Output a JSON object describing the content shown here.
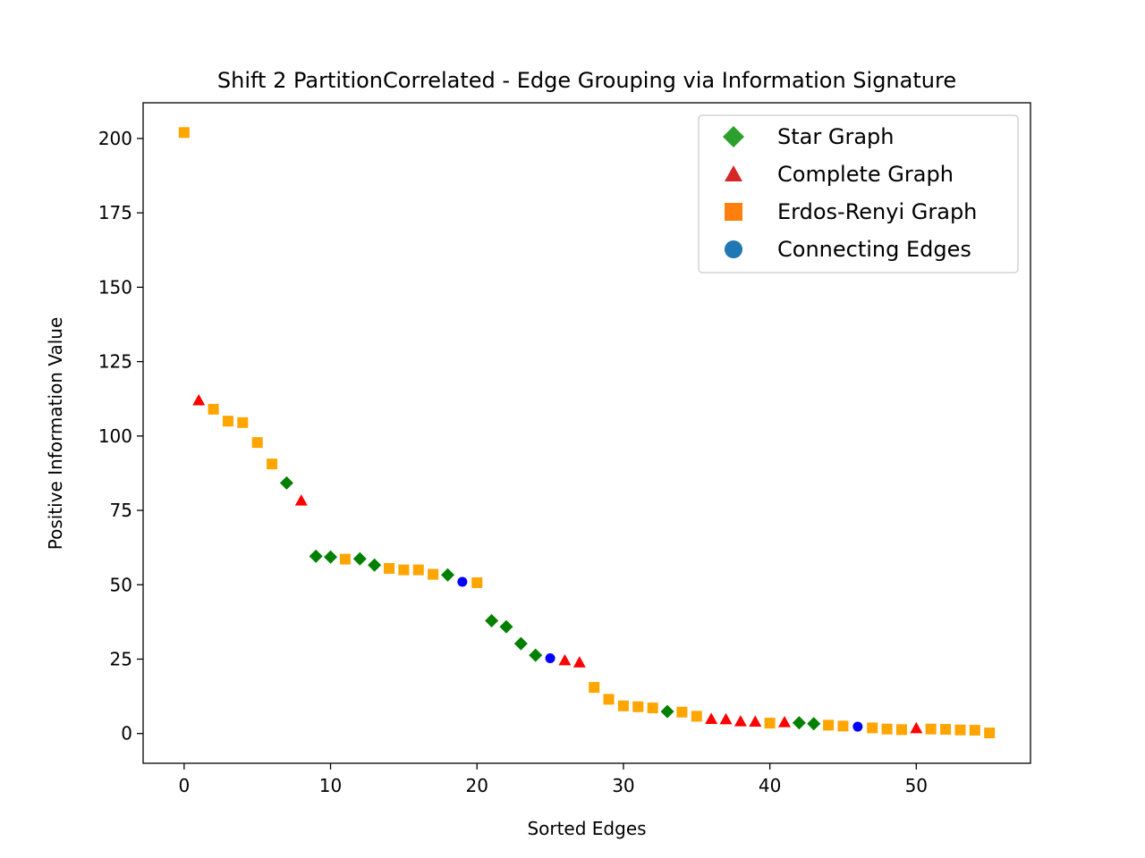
{
  "chart_data": {
    "type": "scatter",
    "title": "Shift 2 PartitionCorrelated - Edge Grouping via Information Signature",
    "xlabel": "Sorted Edges",
    "ylabel": "Positive Information Value",
    "xlim": [
      -2.8,
      57.8
    ],
    "ylim": [
      -10,
      212
    ],
    "xticks": [
      "0",
      "10",
      "20",
      "30",
      "40",
      "50"
    ],
    "yticks": [
      "0",
      "25",
      "50",
      "75",
      "100",
      "125",
      "150",
      "175",
      "200"
    ],
    "grid": false,
    "legend_position": "upper right",
    "legend": [
      {
        "label": "Star Graph",
        "marker": "diamond",
        "color": "#2ca02c"
      },
      {
        "label": "Complete Graph",
        "marker": "triangle",
        "color": "#d62728"
      },
      {
        "label": "Erdos-Renyi Graph",
        "marker": "square",
        "color": "#ff7f0e"
      },
      {
        "label": "Connecting Edges",
        "marker": "circle",
        "color": "#1f77b4"
      }
    ],
    "series": [
      {
        "group": "star",
        "marker": "diamond",
        "color": "#008000",
        "points": [
          [
            7,
            84.2
          ],
          [
            9,
            59.6
          ],
          [
            10,
            59.3
          ],
          [
            12,
            58.7
          ],
          [
            13,
            56.6
          ],
          [
            18,
            53.3
          ],
          [
            21,
            37.9
          ],
          [
            22,
            35.9
          ],
          [
            23,
            30.2
          ],
          [
            24,
            26.3
          ],
          [
            33,
            7.4
          ],
          [
            42,
            3.6
          ],
          [
            43,
            3.3
          ]
        ]
      },
      {
        "group": "complete",
        "marker": "triangle",
        "color": "#ff0000",
        "points": [
          [
            1,
            112.0
          ],
          [
            8,
            78.3
          ],
          [
            26,
            24.6
          ],
          [
            27,
            23.9
          ],
          [
            36,
            4.9
          ],
          [
            37,
            4.8
          ],
          [
            38,
            4.1
          ],
          [
            39,
            4.0
          ],
          [
            41,
            3.8
          ],
          [
            50,
            1.8
          ]
        ]
      },
      {
        "group": "erdos",
        "marker": "square",
        "color": "#ffa500",
        "points": [
          [
            0,
            202.0
          ],
          [
            2,
            109.0
          ],
          [
            3,
            105.0
          ],
          [
            4,
            104.5
          ],
          [
            5,
            97.8
          ],
          [
            6,
            90.6
          ],
          [
            11,
            58.6
          ],
          [
            14,
            55.5
          ],
          [
            15,
            55.0
          ],
          [
            16,
            55.0
          ],
          [
            17,
            53.5
          ],
          [
            20,
            50.7
          ],
          [
            28,
            15.5
          ],
          [
            29,
            11.5
          ],
          [
            30,
            9.3
          ],
          [
            31,
            9.0
          ],
          [
            32,
            8.6
          ],
          [
            34,
            7.2
          ],
          [
            35,
            5.8
          ],
          [
            40,
            3.5
          ],
          [
            44,
            2.8
          ],
          [
            45,
            2.5
          ],
          [
            47,
            1.9
          ],
          [
            48,
            1.5
          ],
          [
            49,
            1.3
          ],
          [
            51,
            1.5
          ],
          [
            52,
            1.4
          ],
          [
            53,
            1.2
          ],
          [
            54,
            1.1
          ],
          [
            55,
            0.2
          ]
        ]
      },
      {
        "group": "connecting",
        "marker": "circle",
        "color": "#0000ff",
        "points": [
          [
            19,
            51.0
          ],
          [
            25,
            25.3
          ],
          [
            46,
            2.3
          ]
        ]
      }
    ]
  }
}
